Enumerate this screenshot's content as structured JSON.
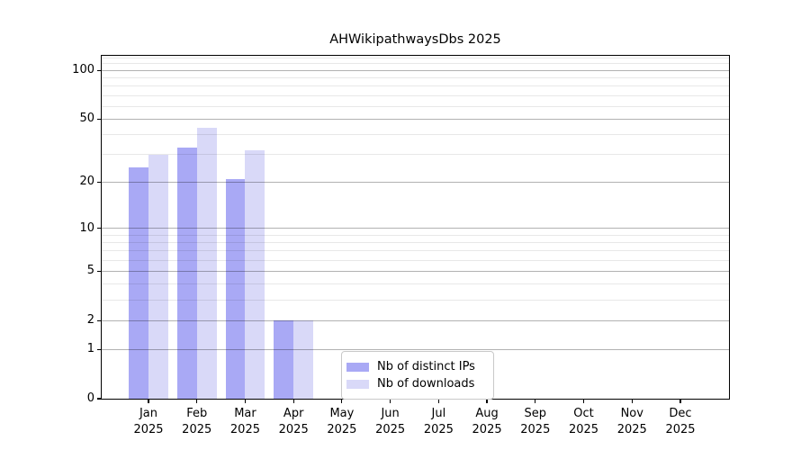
{
  "title": "AHWikipathwaysDbs 2025",
  "colors": {
    "distinct_ips_bar": "#a9a9f5",
    "downloads_bar": "#d9d9f8",
    "grid_major": "#b3b3b3",
    "grid_minor": "#e8e8e8",
    "axis": "#000000",
    "legend_border": "#c9c9c9"
  },
  "legend": {
    "items": [
      {
        "label": "Nb of distinct IPs",
        "swatch": "distinct-ips-swatch"
      },
      {
        "label": "Nb of downloads",
        "swatch": "downloads-swatch"
      }
    ]
  },
  "chart_data": {
    "type": "bar",
    "title": "AHWikipathwaysDbs 2025",
    "categories": [
      "Jan",
      "Feb",
      "Mar",
      "Apr",
      "May",
      "Jun",
      "Jul",
      "Aug",
      "Sep",
      "Oct",
      "Nov",
      "Dec"
    ],
    "year": "2025",
    "series": [
      {
        "name": "Nb of distinct IPs",
        "color": "#a9a9f5",
        "values": [
          25,
          33,
          21,
          2,
          0,
          0,
          0,
          0,
          0,
          0,
          0,
          0
        ]
      },
      {
        "name": "Nb of downloads",
        "color": "#d9d9f8",
        "values": [
          30,
          44,
          32,
          2,
          0,
          0,
          0,
          0,
          0,
          0,
          0,
          0
        ]
      }
    ],
    "xlabel": "",
    "ylabel": "",
    "yticks": [
      0,
      1,
      2,
      5,
      10,
      20,
      50,
      100
    ],
    "yticks_minor": [
      3,
      4,
      6,
      7,
      8,
      9,
      30,
      40,
      60,
      70,
      80,
      90,
      110,
      120
    ],
    "scale": "log1p",
    "ylim": [
      0,
      124
    ],
    "grid": true,
    "legend_position": "lower-center"
  }
}
